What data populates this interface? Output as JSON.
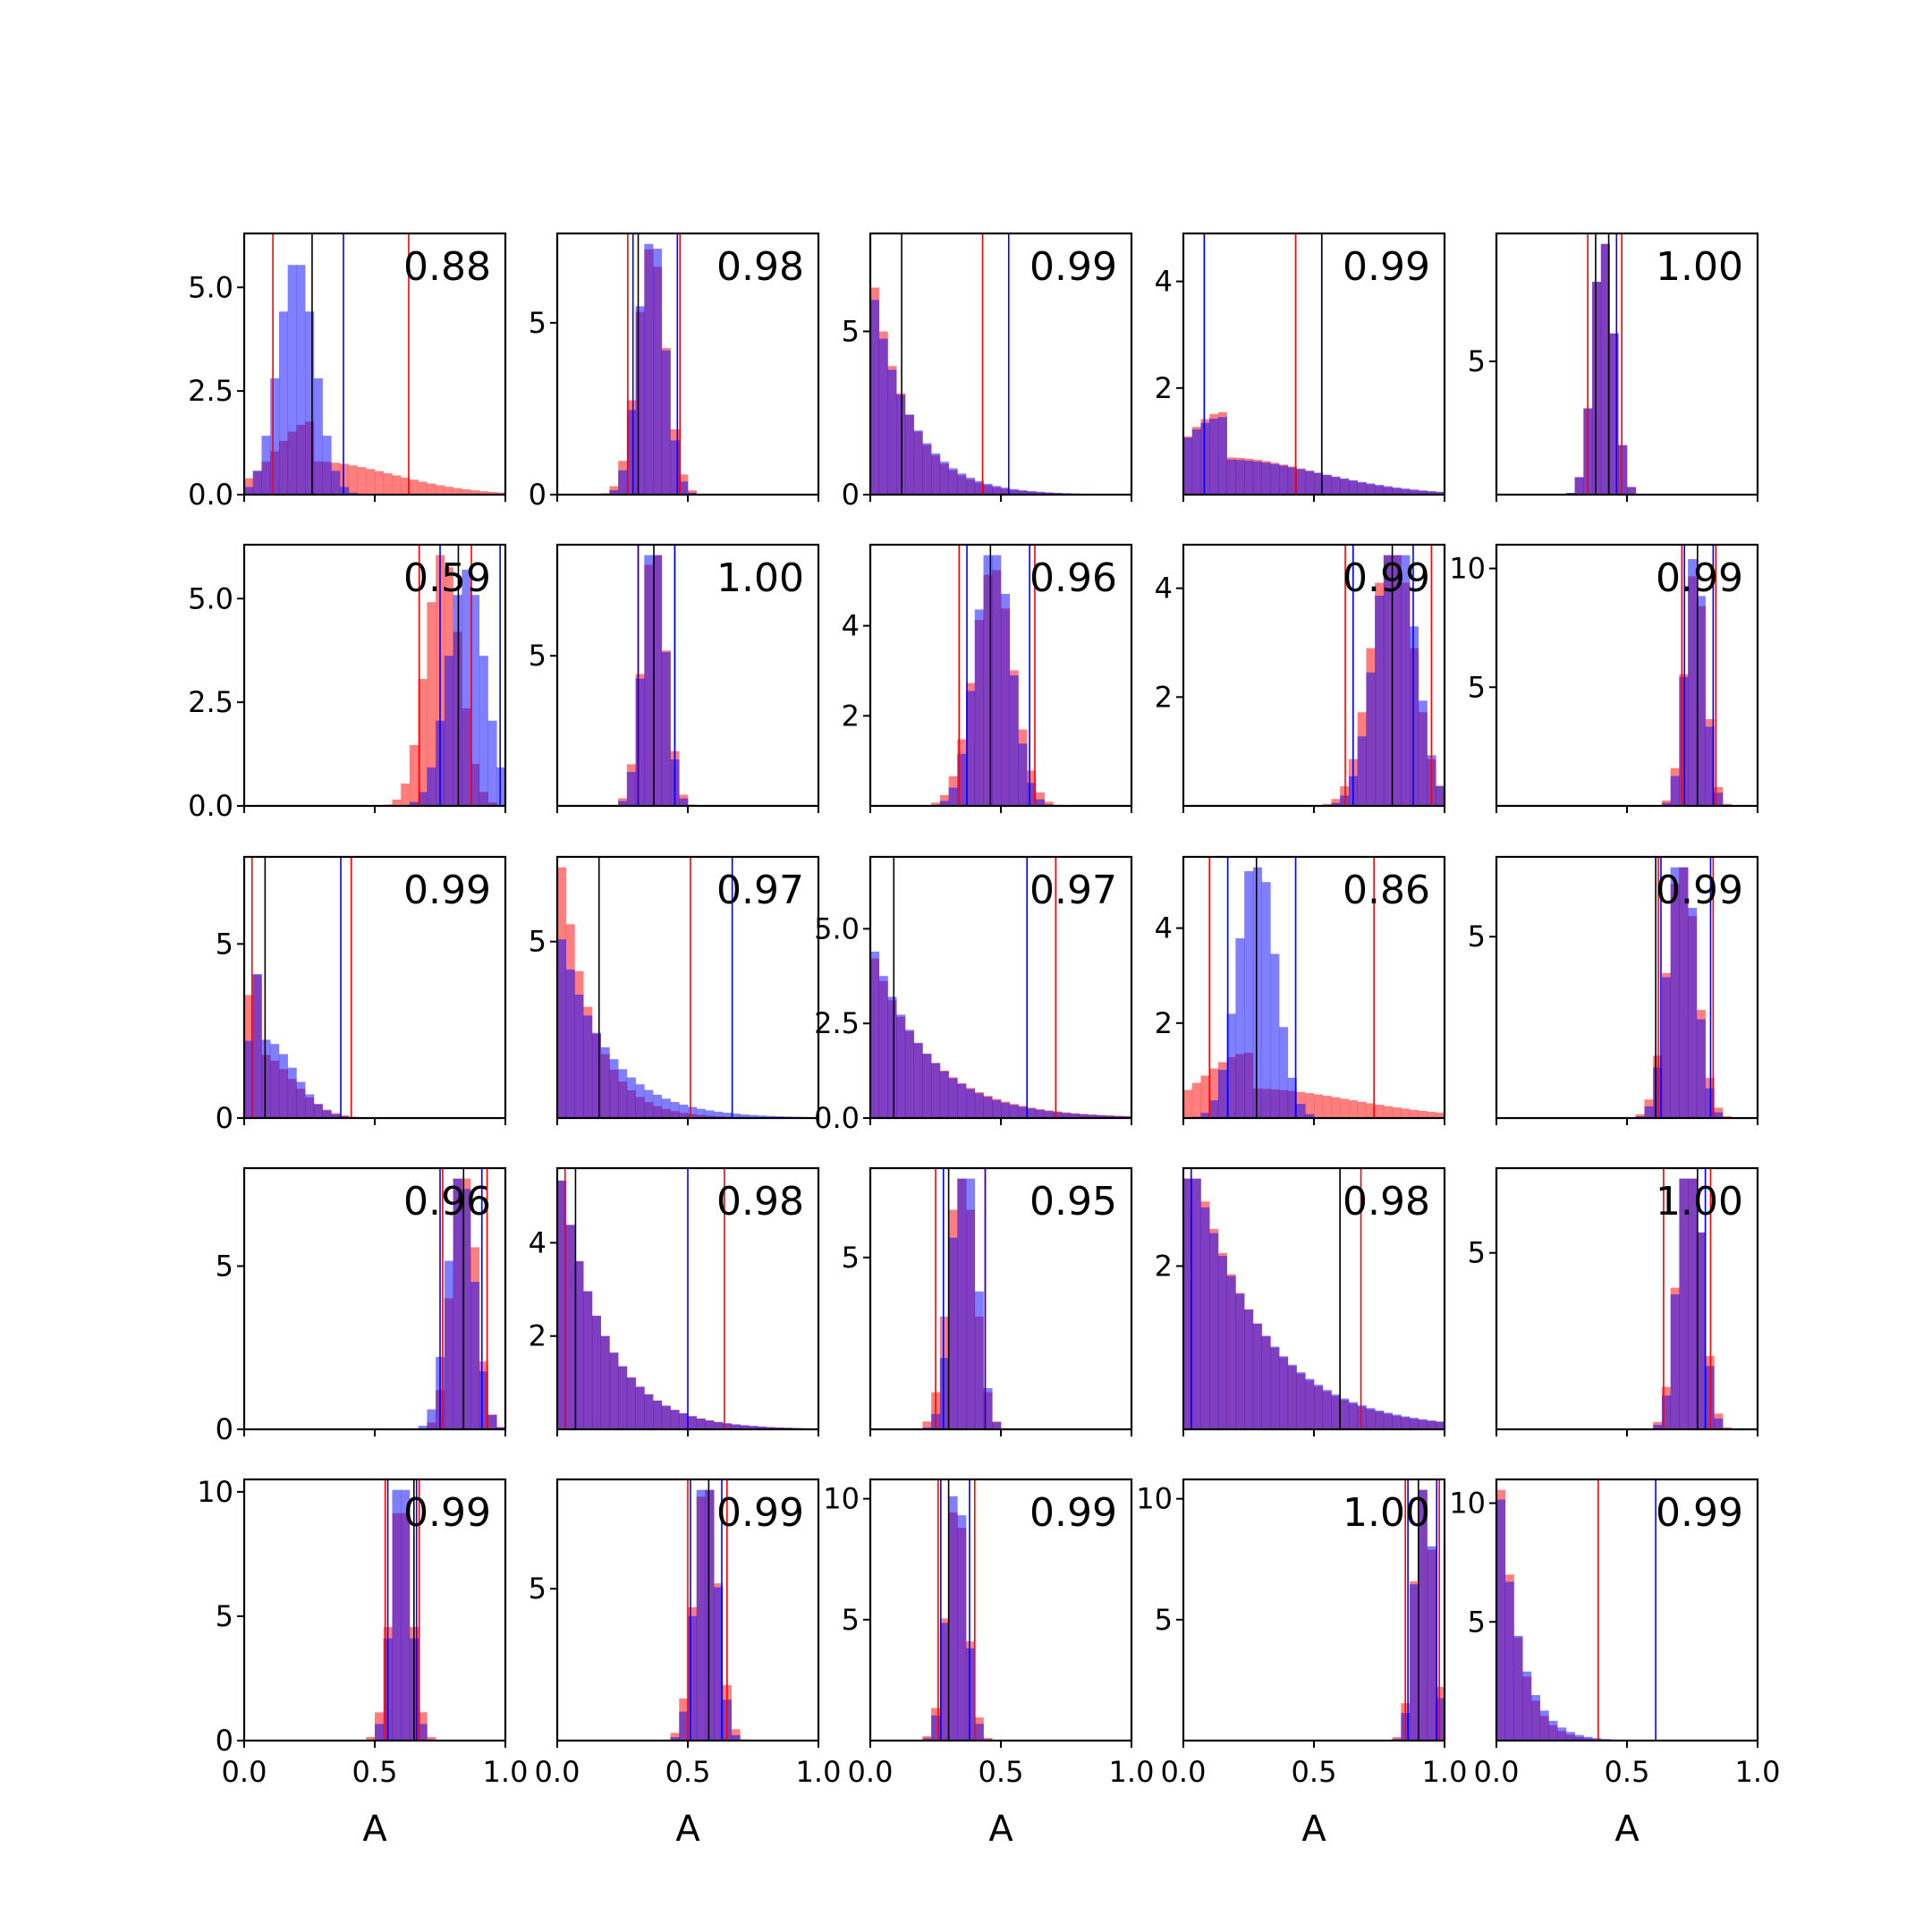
{
  "colors": {
    "series_red": "#ff0000",
    "series_blue": "#0000ff",
    "overlap": "#7f3fbf",
    "median_line": "#000000"
  },
  "chart_data": {
    "type": "histogram-grid",
    "rows": 5,
    "cols": 5,
    "xlabel": "A",
    "xlim": [
      0.0,
      1.0
    ],
    "xticks": [
      "0.0",
      "0.5",
      "1.0"
    ],
    "series": [
      {
        "name": "",
        "color": "#ff0000",
        "opacity": 0.5
      },
      {
        "name": "",
        "color": "#0000ff",
        "opacity": 0.5
      }
    ],
    "panels": [
      {
        "label": "0.88",
        "ymax": 6.3,
        "yticks": [
          "0.0",
          "2.5",
          "5.0"
        ],
        "yvals": [
          0,
          2.5,
          5.0
        ],
        "red": {
          "mean": 0.26,
          "sd": 0.14,
          "skew": 1
        },
        "blue": {
          "mean": 0.2,
          "sd": 0.07,
          "skew": 0
        },
        "red_lines": [
          0.11,
          0.63
        ],
        "blue_lines": [
          0.38
        ],
        "black_lines": [
          0.26
        ]
      },
      {
        "label": "0.98",
        "ymax": 7.6,
        "yticks": [
          "0",
          "5"
        ],
        "yvals": [
          0,
          5
        ],
        "red": {
          "mean": 0.36,
          "sd": 0.055,
          "skew": 0
        },
        "blue": {
          "mean": 0.36,
          "sd": 0.05,
          "skew": 0
        },
        "red_lines": [
          0.27,
          0.47
        ],
        "blue_lines": [
          0.29,
          0.46
        ],
        "black_lines": [
          0.31
        ]
      },
      {
        "label": "0.99",
        "ymax": 8.0,
        "yticks": [
          "0",
          "5"
        ],
        "yvals": [
          0,
          5
        ],
        "red": {
          "mean": 0.0,
          "sd": 0.14,
          "skew": 2
        },
        "blue": {
          "mean": 0.0,
          "sd": 0.15,
          "skew": 2
        },
        "red_lines": [
          0.43
        ],
        "blue_lines": [
          0.53
        ],
        "black_lines": [
          0.12
        ]
      },
      {
        "label": "0.99",
        "ymax": 4.9,
        "yticks": [
          "2",
          "4"
        ],
        "yvals": [
          2,
          4
        ],
        "red": {
          "mean": 0.15,
          "sd": 0.16,
          "skew": 1
        },
        "blue": {
          "mean": 0.15,
          "sd": 0.17,
          "skew": 1
        },
        "red_lines": [
          0.08,
          0.43
        ],
        "blue_lines": [
          0.08,
          0.53
        ],
        "black_lines": [
          0.53
        ]
      },
      {
        "label": "1.00",
        "ymax": 9.8,
        "yticks": [
          "5"
        ],
        "yvals": [
          5
        ],
        "red": {
          "mean": 0.41,
          "sd": 0.04,
          "skew": 0
        },
        "blue": {
          "mean": 0.41,
          "sd": 0.04,
          "skew": 0
        },
        "red_lines": [
          0.35,
          0.48
        ],
        "blue_lines": [
          0.46
        ],
        "black_lines": [
          0.38,
          0.43
        ]
      },
      {
        "label": "0.59",
        "ymax": 6.3,
        "yticks": [
          "0.0",
          "2.5",
          "5.0"
        ],
        "yvals": [
          0,
          2.5,
          5.0
        ],
        "red": {
          "mean": 0.76,
          "sd": 0.065,
          "skew": 0
        },
        "blue": {
          "mean": 0.85,
          "sd": 0.07,
          "skew": 0
        },
        "red_lines": [
          0.67,
          0.87
        ],
        "blue_lines": [
          0.75,
          0.98
        ],
        "black_lines": [
          0.82
        ]
      },
      {
        "label": "1.00",
        "ymax": 8.7,
        "yticks": [
          "5"
        ],
        "yvals": [
          5
        ],
        "red": {
          "mean": 0.37,
          "sd": 0.045,
          "skew": 0
        },
        "blue": {
          "mean": 0.37,
          "sd": 0.042,
          "skew": 0
        },
        "red_lines": [
          0.31,
          0.45
        ],
        "blue_lines": [
          0.31,
          0.45
        ],
        "black_lines": [
          0.37
        ]
      },
      {
        "label": "0.96",
        "ymax": 5.8,
        "yticks": [
          "2",
          "4"
        ],
        "yvals": [
          2,
          4
        ],
        "red": {
          "mean": 0.47,
          "sd": 0.075,
          "skew": 0
        },
        "blue": {
          "mean": 0.47,
          "sd": 0.066,
          "skew": 0
        },
        "red_lines": [
          0.34,
          0.63
        ],
        "blue_lines": [
          0.37,
          0.61
        ],
        "black_lines": [
          0.46
        ]
      },
      {
        "label": "0.99",
        "ymax": 4.8,
        "yticks": [
          "2",
          "4"
        ],
        "yvals": [
          2,
          4
        ],
        "red": {
          "mean": 0.8,
          "sd": 0.08,
          "skew": 0
        },
        "blue": {
          "mean": 0.81,
          "sd": 0.075,
          "skew": 0
        },
        "red_lines": [
          0.62,
          0.95
        ],
        "blue_lines": [
          0.65,
          0.88
        ],
        "black_lines": [
          0.8
        ]
      },
      {
        "label": "0.99",
        "ymax": 11.0,
        "yticks": [
          "5",
          "10"
        ],
        "yvals": [
          5,
          10
        ],
        "red": {
          "mean": 0.76,
          "sd": 0.04,
          "skew": 0
        },
        "blue": {
          "mean": 0.76,
          "sd": 0.037,
          "skew": 0
        },
        "red_lines": [
          0.71,
          0.84
        ],
        "blue_lines": [
          0.72,
          0.83
        ],
        "black_lines": [
          0.77
        ]
      },
      {
        "label": "0.99",
        "ymax": 7.5,
        "yticks": [
          "0",
          "5"
        ],
        "yvals": [
          0,
          5
        ],
        "red": {
          "mean": 0.05,
          "sd": 0.06,
          "skew": 1
        },
        "blue": {
          "mean": 0.08,
          "sd": 0.05,
          "skew": 1
        },
        "red_lines": [
          0.03,
          0.41
        ],
        "blue_lines": [
          0.37
        ],
        "black_lines": [
          0.08
        ]
      },
      {
        "label": "0.97",
        "ymax": 7.4,
        "yticks": [
          "5"
        ],
        "yvals": [
          5
        ],
        "red": {
          "mean": 0.0,
          "sd": 0.12,
          "skew": 2
        },
        "blue": {
          "mean": 0.0,
          "sd": 0.18,
          "skew": 2
        },
        "red_lines": [
          0.51
        ],
        "blue_lines": [
          0.0,
          0.67
        ],
        "black_lines": [
          0.16
        ]
      },
      {
        "label": "0.97",
        "ymax": 6.9,
        "yticks": [
          "0.0",
          "2.5",
          "5.0"
        ],
        "yvals": [
          0,
          2.5,
          5.0
        ],
        "red": {
          "mean": 0.0,
          "sd": 0.22,
          "skew": 2
        },
        "blue": {
          "mean": 0.0,
          "sd": 0.21,
          "skew": 2
        },
        "red_lines": [
          0.71
        ],
        "blue_lines": [
          0.6
        ],
        "black_lines": [
          0.09
        ]
      },
      {
        "label": "0.86",
        "ymax": 5.5,
        "yticks": [
          "2",
          "4"
        ],
        "yvals": [
          2,
          4
        ],
        "red": {
          "mean": 0.25,
          "sd": 0.18,
          "skew": 1
        },
        "blue": {
          "mean": 0.28,
          "sd": 0.07,
          "skew": 0
        },
        "red_lines": [
          0.1,
          0.73
        ],
        "blue_lines": [
          0.17,
          0.43
        ],
        "black_lines": [
          0.28
        ]
      },
      {
        "label": "0.99",
        "ymax": 7.2,
        "yticks": [
          "5"
        ],
        "yvals": [
          5
        ],
        "red": {
          "mean": 0.71,
          "sd": 0.055,
          "skew": 0
        },
        "blue": {
          "mean": 0.71,
          "sd": 0.05,
          "skew": 0
        },
        "red_lines": [
          0.62,
          0.83
        ],
        "blue_lines": [
          0.63,
          0.82
        ],
        "black_lines": [
          0.61
        ]
      },
      {
        "label": "0.96",
        "ymax": 8.0,
        "yticks": [
          "0",
          "5"
        ],
        "yvals": [
          0,
          5
        ],
        "red": {
          "mean": 0.84,
          "sd": 0.045,
          "skew": 0
        },
        "blue": {
          "mean": 0.83,
          "sd": 0.05,
          "skew": 0
        },
        "red_lines": [
          0.76,
          0.93
        ],
        "blue_lines": [
          0.75,
          0.91
        ],
        "black_lines": [
          0.84
        ]
      },
      {
        "label": "0.98",
        "ymax": 5.6,
        "yticks": [
          "2",
          "4"
        ],
        "yvals": [
          2,
          4
        ],
        "red": {
          "mean": 0.0,
          "sd": 0.17,
          "skew": 2
        },
        "blue": {
          "mean": 0.0,
          "sd": 0.17,
          "skew": 2
        },
        "red_lines": [
          0.03,
          0.64
        ],
        "blue_lines": [
          0.5
        ],
        "black_lines": [
          0.07
        ]
      },
      {
        "label": "0.95",
        "ymax": 7.6,
        "yticks": [
          "5"
        ],
        "yvals": [
          5
        ],
        "red": {
          "mean": 0.35,
          "sd": 0.05,
          "skew": 0
        },
        "blue": {
          "mean": 0.36,
          "sd": 0.045,
          "skew": 0
        },
        "red_lines": [
          0.25,
          0.44
        ],
        "blue_lines": [
          0.28,
          0.44
        ],
        "black_lines": [
          0.3
        ]
      },
      {
        "label": "0.98",
        "ymax": 3.2,
        "yticks": [
          "2"
        ],
        "yvals": [
          2
        ],
        "red": {
          "mean": 0.0,
          "sd": 0.26,
          "skew": 2
        },
        "blue": {
          "mean": 0.0,
          "sd": 0.27,
          "skew": 2
        },
        "red_lines": [
          0.68
        ],
        "blue_lines": [
          0.03,
          0.6
        ],
        "black_lines": [
          0.6
        ]
      },
      {
        "label": "1.00",
        "ymax": 7.4,
        "yticks": [
          "5"
        ],
        "yvals": [
          5
        ],
        "red": {
          "mean": 0.74,
          "sd": 0.045,
          "skew": 0
        },
        "blue": {
          "mean": 0.74,
          "sd": 0.042,
          "skew": 0
        },
        "red_lines": [
          0.64,
          0.82
        ],
        "blue_lines": [
          0.8
        ],
        "black_lines": [
          0.77
        ]
      },
      {
        "label": "0.99",
        "ymax": 10.5,
        "yticks": [
          "0",
          "5",
          "10"
        ],
        "yvals": [
          0,
          5,
          10
        ],
        "red": {
          "mean": 0.6,
          "sd": 0.04,
          "skew": 0
        },
        "blue": {
          "mean": 0.6,
          "sd": 0.035,
          "skew": 0
        },
        "red_lines": [
          0.54,
          0.67
        ],
        "blue_lines": [
          0.55,
          0.66
        ],
        "black_lines": [
          0.65
        ]
      },
      {
        "label": "0.99",
        "ymax": 8.6,
        "yticks": [
          "5"
        ],
        "yvals": [
          5
        ],
        "red": {
          "mean": 0.57,
          "sd": 0.045,
          "skew": 0
        },
        "blue": {
          "mean": 0.57,
          "sd": 0.04,
          "skew": 0
        },
        "red_lines": [
          0.5,
          0.65
        ],
        "blue_lines": [
          0.51,
          0.63
        ],
        "black_lines": [
          0.58
        ]
      },
      {
        "label": "0.99",
        "ymax": 10.8,
        "yticks": [
          "5",
          "10"
        ],
        "yvals": [
          5,
          10
        ],
        "red": {
          "mean": 0.33,
          "sd": 0.04,
          "skew": 0
        },
        "blue": {
          "mean": 0.33,
          "sd": 0.037,
          "skew": 0
        },
        "red_lines": [
          0.26,
          0.4
        ],
        "blue_lines": [
          0.27,
          0.38
        ],
        "black_lines": [
          0.3
        ]
      },
      {
        "label": "1.00",
        "ymax": 10.8,
        "yticks": [
          "5",
          "10"
        ],
        "yvals": [
          5,
          10
        ],
        "red": {
          "mean": 0.92,
          "sd": 0.035,
          "skew": 0
        },
        "blue": {
          "mean": 0.92,
          "sd": 0.032,
          "skew": 0
        },
        "red_lines": [
          0.85,
          0.98
        ],
        "blue_lines": [
          0.86,
          0.97
        ],
        "black_lines": [
          0.9
        ]
      },
      {
        "label": "0.99",
        "ymax": 11.0,
        "yticks": [
          "5",
          "10"
        ],
        "yvals": [
          5,
          10
        ],
        "red": {
          "mean": 0.0,
          "sd": 0.07,
          "skew": 2
        },
        "blue": {
          "mean": 0.0,
          "sd": 0.08,
          "skew": 2
        },
        "red_lines": [
          0.39
        ],
        "blue_lines": [
          0.61
        ],
        "black_lines": []
      }
    ]
  }
}
